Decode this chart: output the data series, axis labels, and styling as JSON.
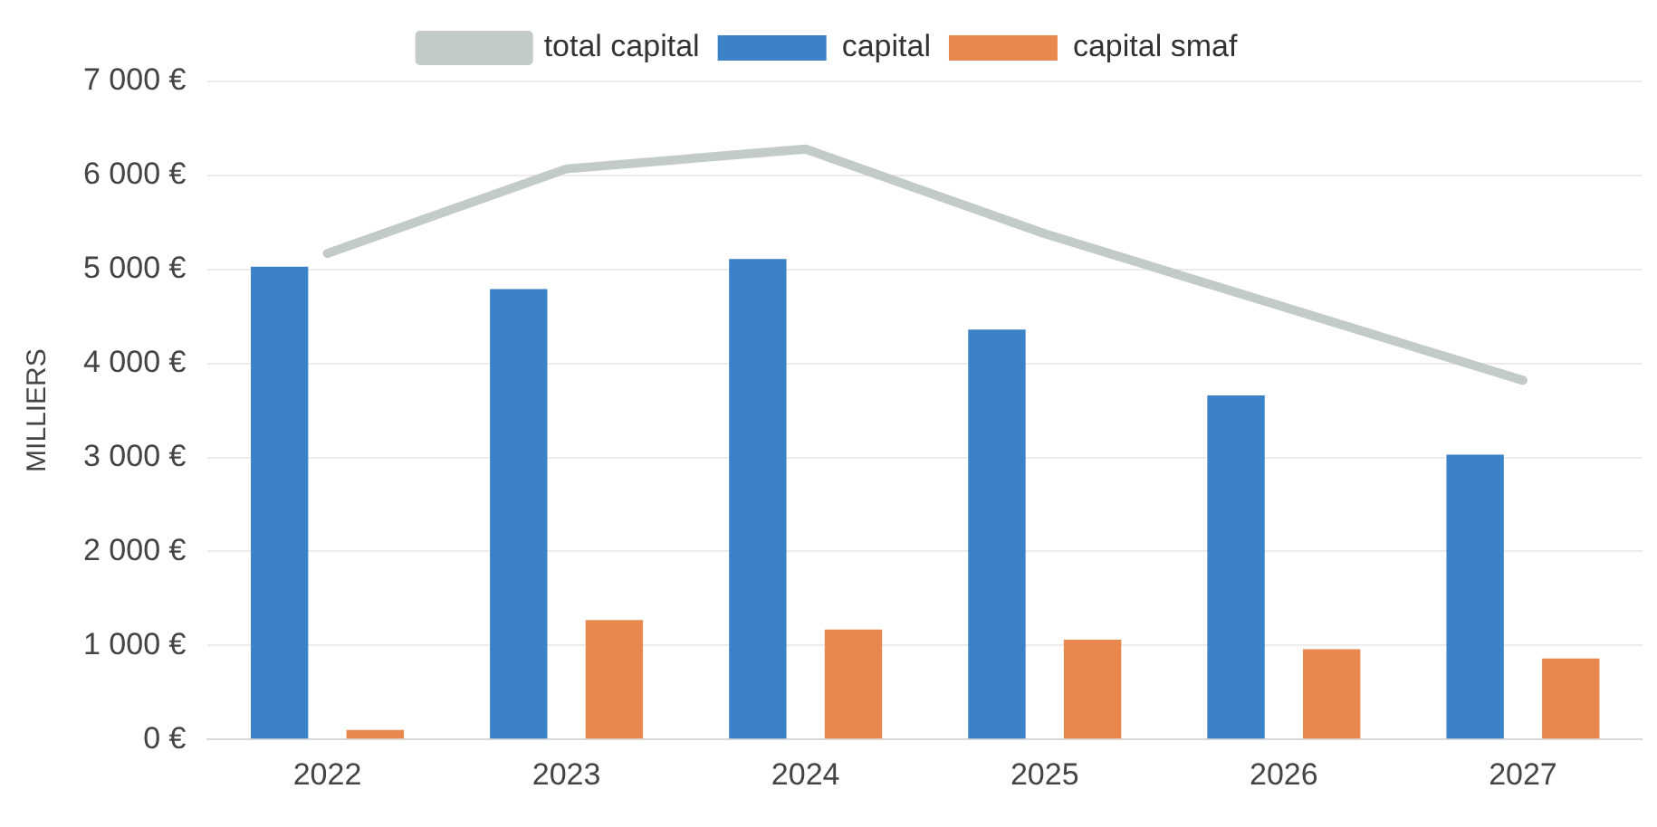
{
  "chart_data": {
    "type": "bar",
    "ylabel": "MILLIERS",
    "categories": [
      "2022",
      "2023",
      "2024",
      "2025",
      "2026",
      "2027"
    ],
    "series": [
      {
        "name": "capital",
        "color": "#3b82c8",
        "values": [
          5030,
          4790,
          5110,
          4360,
          3660,
          3030
        ]
      },
      {
        "name": "capital smaf",
        "color": "#e8884f",
        "values": [
          100,
          1270,
          1170,
          1060,
          960,
          860
        ]
      },
      {
        "name": "total capital",
        "type": "line",
        "color": "#c3cbca",
        "values": [
          5170,
          6070,
          6280,
          5380,
          4600,
          3820
        ]
      }
    ],
    "ylim": [
      0,
      7000
    ],
    "yticks": [
      {
        "value": 0,
        "label": "0 €"
      },
      {
        "value": 1000,
        "label": "1 000 €"
      },
      {
        "value": 2000,
        "label": "2 000 €"
      },
      {
        "value": 3000,
        "label": "3 000 €"
      },
      {
        "value": 4000,
        "label": "4 000 €"
      },
      {
        "value": 5000,
        "label": "5 000 €"
      },
      {
        "value": 6000,
        "label": "6 000 €"
      },
      {
        "value": 7000,
        "label": "7 000 €"
      }
    ],
    "grid": "y",
    "legend": "top",
    "marker": "none"
  }
}
